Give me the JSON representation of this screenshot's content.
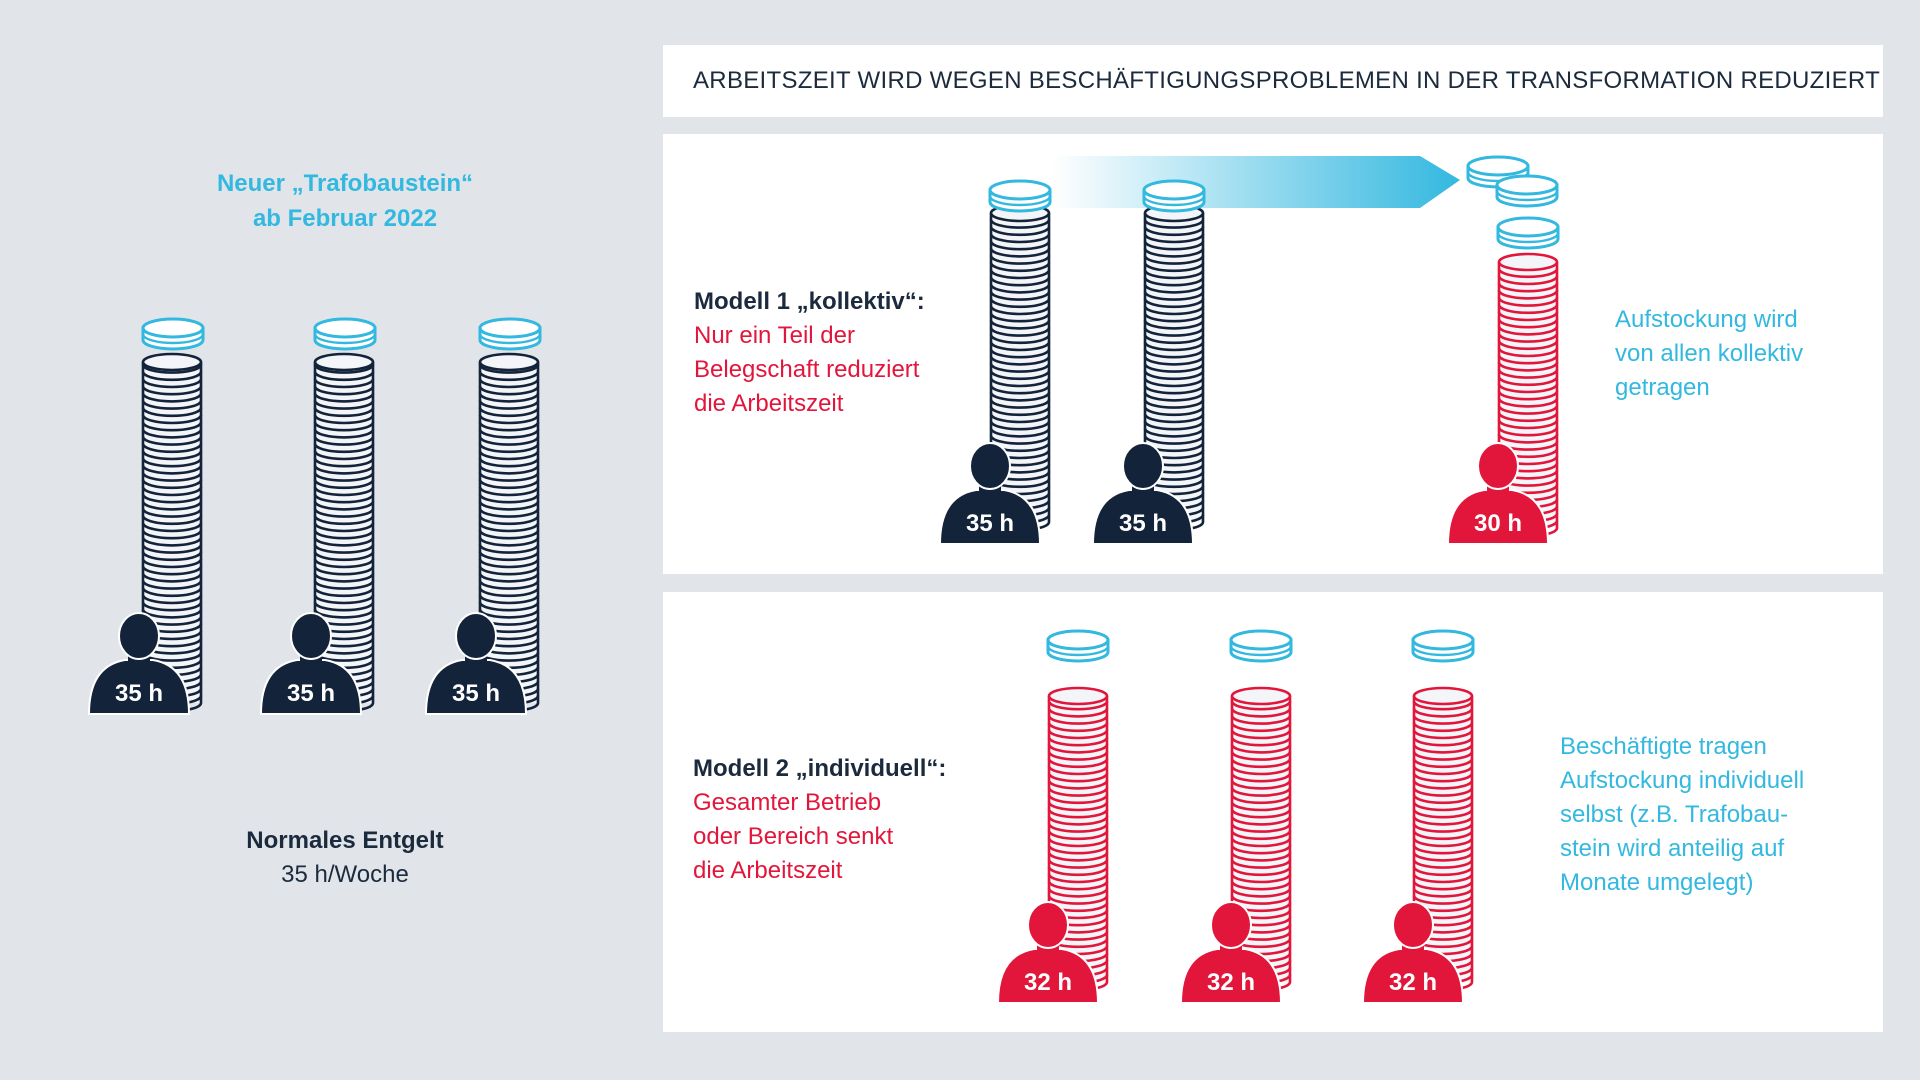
{
  "header": {
    "title": "ARBEITSZEIT WIRD WEGEN BESCHÄFTIGUNGSPROBLEMEN IN DER TRANSFORMATION REDUZIERT"
  },
  "left": {
    "title_line1": "Neuer „Trafobaustein“",
    "title_line2": "ab Februar 2022",
    "caption_bold": "Normales Entgelt",
    "caption_sub": "35 h/Woche",
    "workers": [
      {
        "hours": "35 h",
        "role": "normal"
      },
      {
        "hours": "35 h",
        "role": "normal"
      },
      {
        "hours": "35 h",
        "role": "normal"
      }
    ]
  },
  "model1": {
    "heading": "Modell 1 „kollektiv“:",
    "desc_lines": [
      "Nur ein Teil der",
      "Belegschaft reduziert",
      "die Arbeitszeit"
    ],
    "note_lines": [
      "Aufstockung wird",
      "von allen kollektiv",
      "getragen"
    ],
    "workers": [
      {
        "hours": "35 h",
        "role": "normal"
      },
      {
        "hours": "35 h",
        "role": "normal"
      },
      {
        "hours": "30 h",
        "role": "reduced"
      }
    ]
  },
  "model2": {
    "heading": "Modell 2 „individuell“:",
    "desc_lines": [
      "Gesamter Betrieb",
      "oder Bereich senkt",
      "die Arbeitszeit"
    ],
    "note_lines": [
      "Beschäftigte tragen",
      "Aufstockung individuell",
      "selbst (z.B. Trafobau-",
      "stein wird anteilig auf",
      "Monate umgelegt)"
    ],
    "workers": [
      {
        "hours": "32 h",
        "role": "reduced"
      },
      {
        "hours": "32 h",
        "role": "reduced"
      },
      {
        "hours": "32 h",
        "role": "reduced"
      }
    ]
  },
  "colors": {
    "navy": "#13233a",
    "red": "#e2163b",
    "cyan": "#33b8e0",
    "coin_fill": "#f3f5f8",
    "background": "#e1e5ea"
  },
  "icons": [
    "person-icon",
    "coin-stack",
    "coin-icon",
    "arrow-icon"
  ]
}
